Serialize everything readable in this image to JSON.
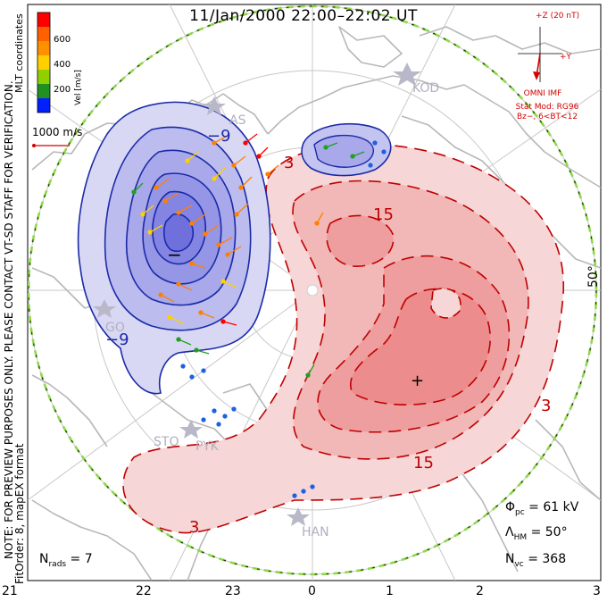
{
  "title": "11/Jan/2000  22:00–22:02  UT",
  "side_note": "NOTE: FOR PREVIEW PURPOSES ONLY. PLEASE CONTACT VT-SD STAFF FOR VERIFICATION.",
  "fit_order": "FitOrder: 8, mapEX format",
  "coord_label": "MLT coordinates",
  "colorbar": {
    "label": "Vel [m/s]",
    "ticks": [
      "600",
      "400",
      "200"
    ],
    "colors": [
      "#ff0000",
      "#ff8000",
      "#ffd000",
      "#a0e000",
      "#20a020",
      "#2060e0",
      "#0010ff"
    ]
  },
  "velocity_ref": "1000 m/s",
  "imf": {
    "top_label": "+Z (20 nT)",
    "right_label": "+Y",
    "name": "OMNI IMF",
    "stat_mod": "Stat Mod: RG96",
    "condition": "Bz−, 6<BT<12"
  },
  "latitude_label": "50°",
  "contours": {
    "negative_label": "−9",
    "positive_labels": [
      "3",
      "15",
      "15",
      "3",
      "3"
    ],
    "min_marker": "−",
    "max_marker": "+"
  },
  "stations": [
    "KOD",
    "AS",
    "STO",
    "PYK",
    "HAN",
    "GO"
  ],
  "stats": {
    "phi_label": "Φ",
    "phi_sub": "pc",
    "phi_value": " = 61 kV",
    "lambda_label": "Λ",
    "lambda_sub": "HM",
    "lambda_value": " = 50°",
    "nvc_label": "N",
    "nvc_sub": "vc",
    "nvc_value": " = 368",
    "nrads_label": "N",
    "nrads_sub": "rads",
    "nrads_value": " = 7"
  },
  "mlt_ticks": [
    "21",
    "22",
    "23",
    "0",
    "1",
    "2",
    "3"
  ],
  "colors": {
    "negative_contour": "#1a2aa8",
    "positive_contour": "#c00000",
    "negative_fill": "#8c8ce8",
    "positive_fill": "#f08080",
    "coastline": "#b8b8b8",
    "grid": "#c8c8c8",
    "boundary": "#8ed84a"
  }
}
